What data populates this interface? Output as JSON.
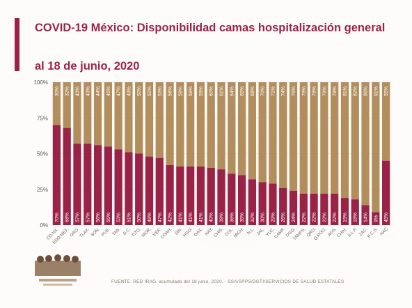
{
  "title": "COVID-19 México: Disponibilidad camas hospitalización general",
  "subtitle": "al 18 de junio, 2020",
  "footer": "FUENTE: RED IRAG, acumulado del 18 junio, 2020.  - SSA/SPPS/DGTI/SERVICIOS DE SALUD ESTATALES",
  "colors": {
    "brand": "#9b2247",
    "occupied": "#9b2247",
    "available": "#b38e5d"
  },
  "chart_data": {
    "type": "bar",
    "stacked": true,
    "ylim": [
      0,
      100
    ],
    "y_ticks": [
      "0%",
      "25%",
      "50%",
      "75%",
      "100%"
    ],
    "categories": [
      "CD.MX.",
      "EDO.MEX.",
      "GRO.",
      "TLAX.",
      "SON.",
      "PUE.",
      "TAB.",
      "B.C.",
      "GTO.",
      "MOR.",
      "VER.",
      "COAH.",
      "SIN.",
      "HGO.",
      "OAX.",
      "NAY.",
      "CHIS.",
      "COL.",
      "MICH.",
      "N.L.",
      "JAL.",
      "YUC.",
      "CAMP.",
      "DGO.",
      "TAMPS.",
      "QRO.",
      "Q.ROO.",
      "AGS.",
      "CHIH.",
      "S.L.P.",
      "ZAC.",
      "B.C.S.",
      "NAC"
    ],
    "series": [
      {
        "values": [
          70,
          68,
          57,
          57,
          56,
          55,
          53,
          51,
          50,
          48,
          47,
          42,
          41,
          41,
          41,
          40,
          39,
          36,
          35,
          32,
          30,
          29,
          26,
          24,
          22,
          22,
          22,
          22,
          19,
          18,
          14,
          9,
          45
        ]
      },
      {
        "values": [
          30,
          32,
          43,
          43,
          44,
          45,
          47,
          49,
          50,
          52,
          53,
          58,
          59,
          59,
          59,
          60,
          61,
          64,
          65,
          68,
          70,
          71,
          74,
          76,
          78,
          78,
          78,
          78,
          81,
          82,
          86,
          91,
          55
        ]
      }
    ]
  }
}
